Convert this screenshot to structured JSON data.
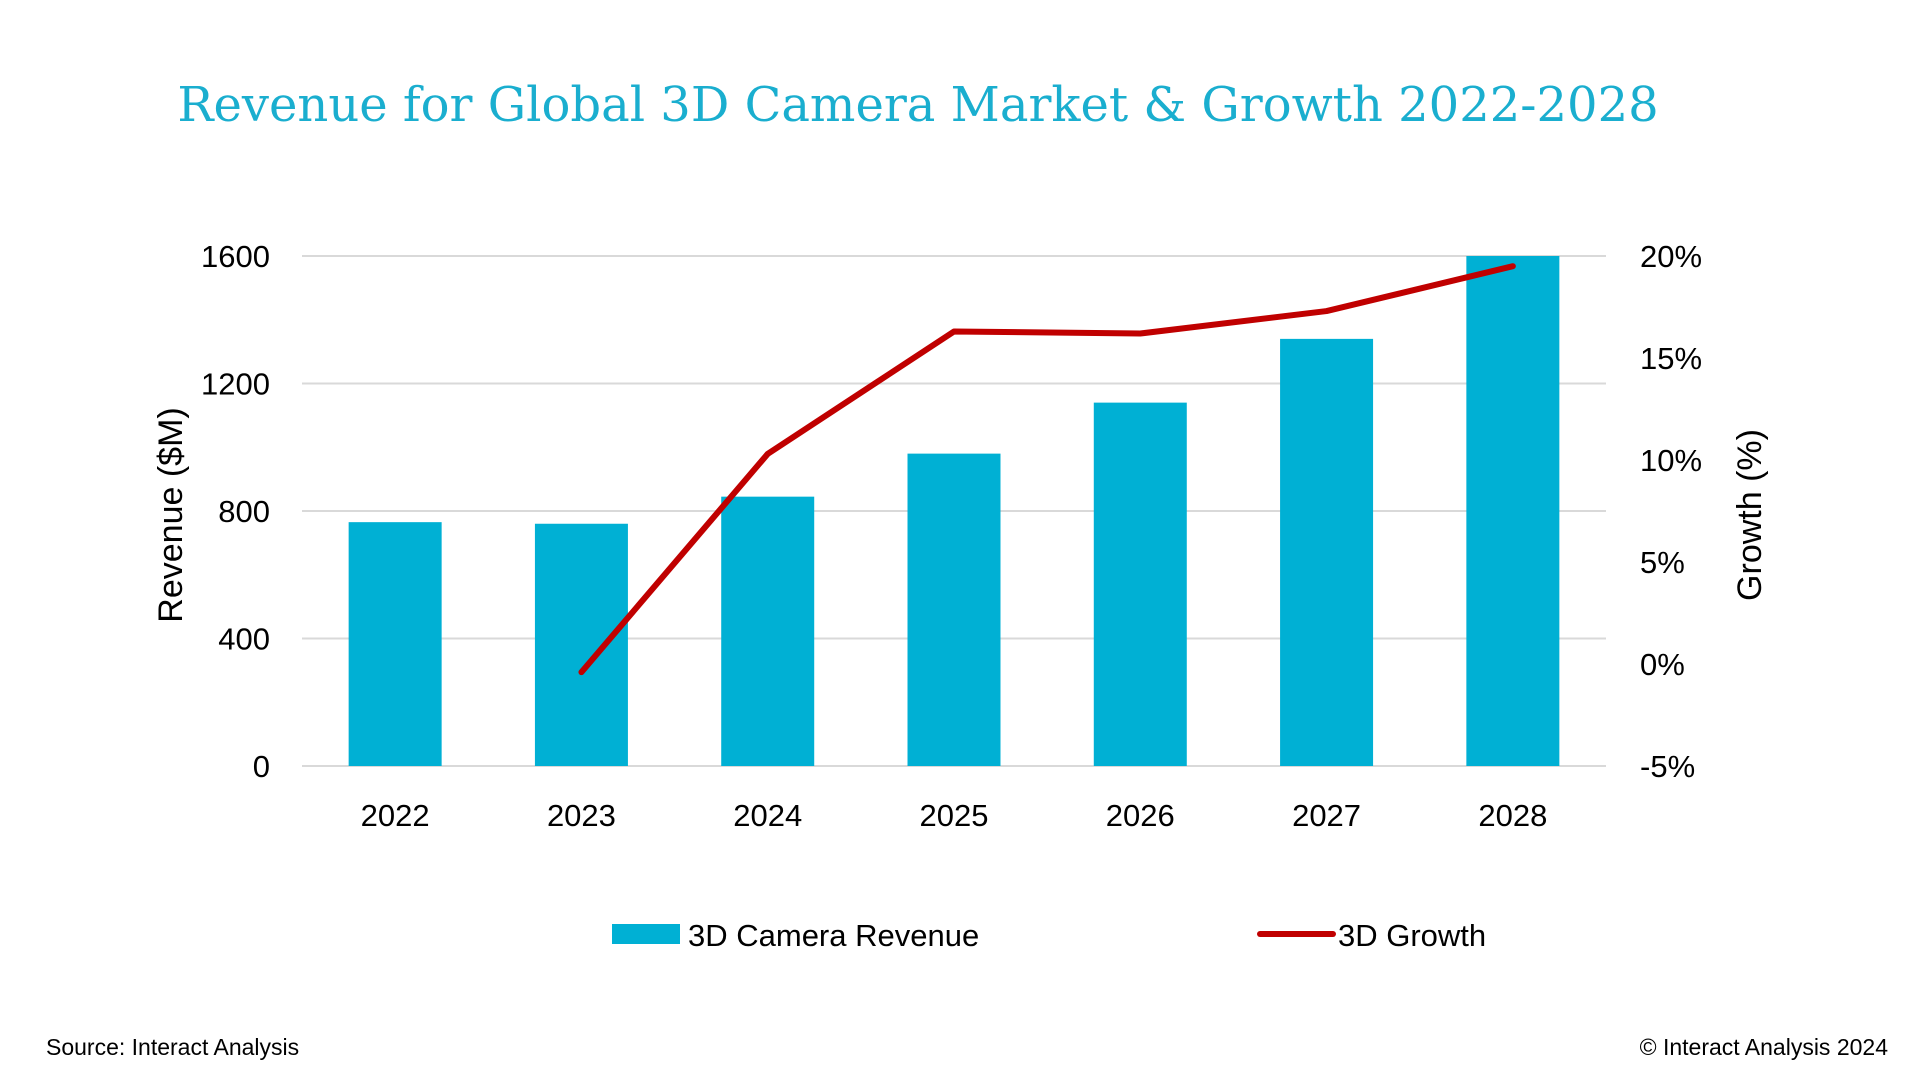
{
  "chart_data": {
    "type": "bar",
    "title": "Revenue for Global 3D Camera Market & Growth 2022-2028",
    "categories": [
      "2022",
      "2023",
      "2024",
      "2025",
      "2026",
      "2027",
      "2028"
    ],
    "series": [
      {
        "name": "3D Camera Revenue",
        "type": "bar",
        "axis": "left",
        "values": [
          765,
          760,
          845,
          980,
          1140,
          1340,
          1600
        ]
      },
      {
        "name": "3D Growth",
        "type": "line",
        "axis": "right",
        "values": [
          null,
          -0.4,
          10.3,
          16.3,
          16.2,
          17.3,
          19.5
        ]
      }
    ],
    "ylabel": "Revenue ($M)",
    "ylim": [
      0,
      1600
    ],
    "yticks": [
      "0",
      "400",
      "800",
      "1200",
      "1600"
    ],
    "y2label": "Growth (%)",
    "y2lim": [
      -5,
      20
    ],
    "y2ticks": [
      "-5%",
      "0%",
      "5%",
      "10%",
      "15%",
      "20%"
    ],
    "grid": true,
    "legend_position": "bottom",
    "colors": {
      "title": "#1aaecf",
      "bar": "#00b0d4",
      "line": "#c00000",
      "grid": "#d9d9d9"
    }
  },
  "footer": {
    "source": "Source: Interact Analysis",
    "copyright": "© Interact Analysis 2024"
  }
}
